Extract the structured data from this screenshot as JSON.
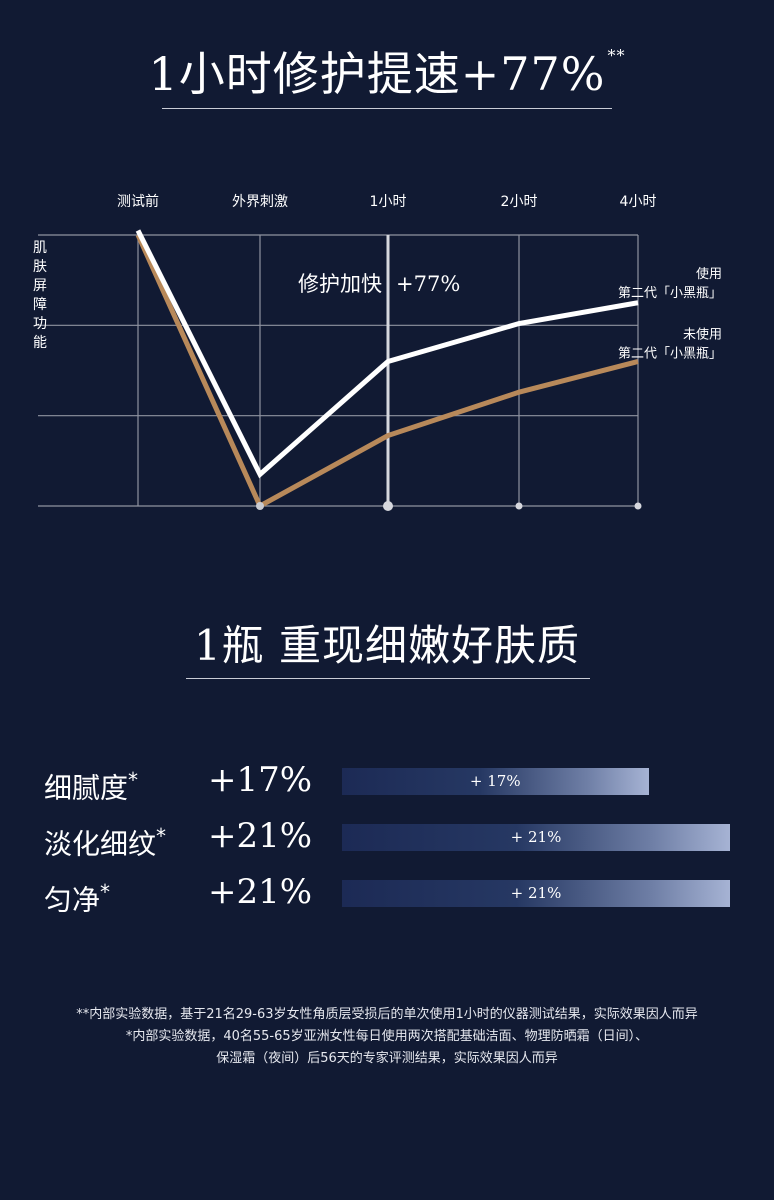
{
  "section1": {
    "title": "1小时修护提速+77%",
    "title_mark": "**"
  },
  "chart_data": {
    "type": "line",
    "x": [
      "测试前",
      "外界刺激",
      "1小时",
      "2小时",
      "4小时"
    ],
    "ylabel": "肌肤屏障功能",
    "ylim": [
      0,
      3
    ],
    "grid": true,
    "series": [
      {
        "name": "使用 第二代「小黑瓶」",
        "label_lines": [
          "使用",
          "第二代「小黑瓶」"
        ],
        "color": "#ffffff",
        "values": [
          3.05,
          0.35,
          1.6,
          2.02,
          2.25
        ]
      },
      {
        "name": "未使用 第二代「小黑瓶」",
        "label_lines": [
          "未使用",
          "第二代「小黑瓶」"
        ],
        "color": "#b8895a",
        "values": [
          3.0,
          0.0,
          0.78,
          1.26,
          1.6
        ]
      }
    ],
    "annotation": {
      "text": "修护加快",
      "value": "+77%"
    }
  },
  "section2": {
    "title": "1瓶 重现细嫩好肤质",
    "bars": [
      {
        "label": "细腻度",
        "mark": "*",
        "value": "+17%",
        "bar_text": "+ 17%",
        "fill": 0.79
      },
      {
        "label": "淡化细纹",
        "mark": "*",
        "value": "+21%",
        "bar_text": "+ 21%",
        "fill": 1.0
      },
      {
        "label": "匀净",
        "mark": "*",
        "value": "+21%",
        "bar_text": "+ 21%",
        "fill": 1.0
      }
    ]
  },
  "footnotes": [
    "**内部实验数据，基于21名29-63岁女性角质层受损后的单次使用1小时的仪器测试结果，实际效果因人而异",
    "*内部实验数据，40名55-65岁亚洲女性每日使用两次搭配基础洁面、物理防晒霜（日间）、",
    "保湿霜（夜间）后56天的专家评测结果，实际效果因人而异"
  ]
}
